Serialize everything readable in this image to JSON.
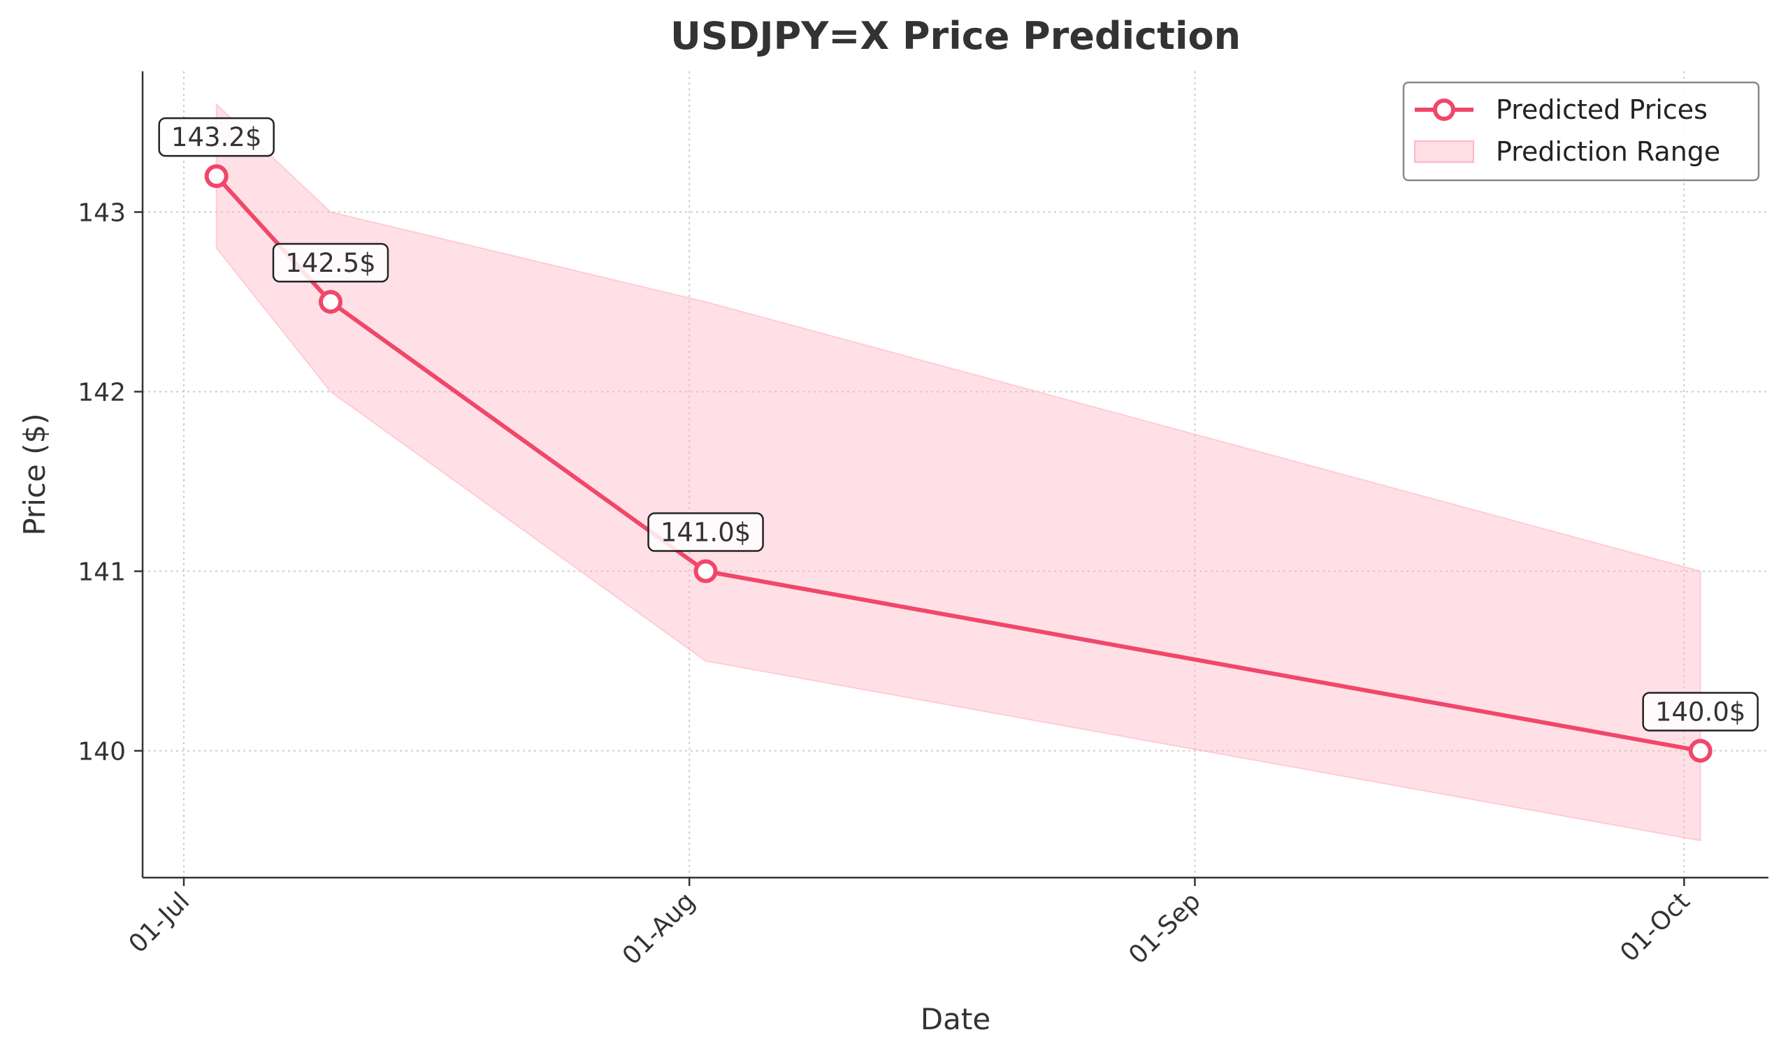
{
  "chart_data": {
    "type": "line",
    "title": "USDJPY=X Price Prediction",
    "xlabel": "Date",
    "ylabel": "Price ($)",
    "x_ticks": [
      "01-Jul",
      "01-Aug",
      "01-Sep",
      "01-Oct"
    ],
    "y_ticks": [
      140,
      141,
      142,
      143
    ],
    "ylim": [
      139.3,
      143.8
    ],
    "grid": true,
    "legend_position": "top-right",
    "series": [
      {
        "name": "Predicted Prices",
        "kind": "line",
        "color": "#f0476a",
        "x": [
          "2024-07-03",
          "2024-07-10",
          "2024-08-02",
          "2024-10-02"
        ],
        "values": [
          143.2,
          142.5,
          141.0,
          140.0
        ],
        "labels": [
          "143.2$",
          "142.5$",
          "141.0$",
          "140.0$"
        ]
      },
      {
        "name": "Prediction Range",
        "kind": "band",
        "color": "#ffb6c4",
        "x": [
          "2024-07-03",
          "2024-07-10",
          "2024-08-02",
          "2024-10-02"
        ],
        "upper": [
          143.6,
          143.0,
          142.5,
          141.0
        ],
        "lower": [
          142.8,
          142.0,
          140.5,
          139.5
        ]
      }
    ]
  }
}
